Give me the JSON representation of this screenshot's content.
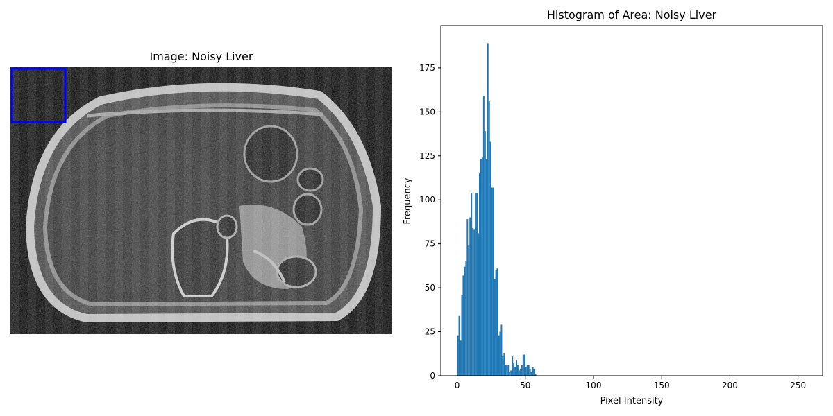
{
  "image_panel": {
    "title": "Image: Noisy Liver",
    "roi_box_color": "#0000ff"
  },
  "chart_data": {
    "type": "bar",
    "title": "Histogram of Area: Noisy Liver",
    "xlabel": "Pixel Intensity",
    "ylabel": "Frequency",
    "xlim": [
      -12,
      268
    ],
    "ylim": [
      0,
      199
    ],
    "x_ticks": [
      0,
      50,
      100,
      150,
      200,
      250
    ],
    "y_ticks": [
      0,
      25,
      50,
      75,
      100,
      125,
      150,
      175
    ],
    "bar_color": "#1f77b4",
    "bin_width": 1,
    "bins": [
      0,
      1,
      2,
      3,
      4,
      5,
      6,
      7,
      8,
      9,
      10,
      11,
      12,
      13,
      14,
      15,
      16,
      17,
      18,
      19,
      20,
      21,
      22,
      23,
      24,
      25,
      26,
      27,
      28,
      29,
      30,
      31,
      32,
      33,
      34,
      35,
      36,
      37,
      38,
      39,
      40,
      41,
      42,
      43,
      44,
      45,
      46,
      47,
      48,
      49,
      50,
      51,
      52,
      53,
      54,
      55,
      56,
      57,
      58,
      59,
      60
    ],
    "values": [
      23,
      34,
      20,
      46,
      57,
      62,
      65,
      89,
      74,
      90,
      104,
      84,
      83,
      104,
      104,
      81,
      115,
      123,
      124,
      159,
      139,
      123,
      189,
      156,
      133,
      107,
      107,
      55,
      60,
      61,
      23,
      25,
      29,
      11,
      13,
      6,
      6,
      6,
      2,
      3,
      11,
      7,
      5,
      9,
      6,
      3,
      4,
      6,
      12,
      12,
      5,
      6,
      6,
      4,
      2,
      5,
      4,
      1,
      0,
      0,
      0
    ]
  }
}
